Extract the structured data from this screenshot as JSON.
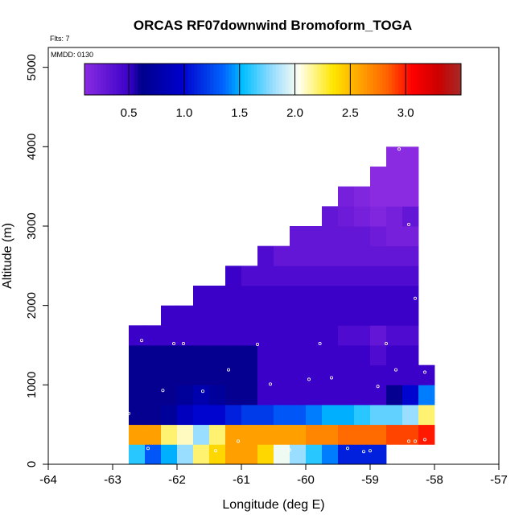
{
  "chart_data": {
    "type": "heatmap",
    "title": "ORCAS RF07downwind Bromoform_TOGA",
    "annotations": [
      "Flts: 7",
      "MMDD: 0130"
    ],
    "xlabel": "Longitude (deg E)",
    "ylabel": "Altitude (m)",
    "xlim": [
      -64,
      -57
    ],
    "ylim": [
      0,
      5250
    ],
    "x_ticks": [
      -64,
      -63,
      -62,
      -61,
      -60,
      -59,
      -58,
      -57
    ],
    "y_ticks": [
      0,
      1000,
      2000,
      3000,
      4000,
      5000
    ],
    "grid": false,
    "colorbar": {
      "min": 0.1,
      "max": 3.5,
      "tick_values": [
        0.5,
        1.0,
        1.5,
        2.0,
        2.5,
        3.0
      ],
      "tick_labels": [
        "0.5",
        "1.0",
        "1.5",
        "2.0",
        "2.5",
        "3.0"
      ],
      "colormap_stops": [
        [
          0.0,
          "#8a2be2"
        ],
        [
          0.12,
          "#3a00c8"
        ],
        [
          0.15,
          "#00008b"
        ],
        [
          0.26,
          "#0000cd"
        ],
        [
          0.37,
          "#0066ff"
        ],
        [
          0.42,
          "#00bfff"
        ],
        [
          0.5,
          "#99ddff"
        ],
        [
          0.57,
          "#fffff0"
        ],
        [
          0.66,
          "#ffe600"
        ],
        [
          0.73,
          "#ffa500"
        ],
        [
          0.8,
          "#ff6600"
        ],
        [
          0.87,
          "#ff0000"
        ],
        [
          0.94,
          "#cc0000"
        ],
        [
          1.0,
          "#a52a2a"
        ]
      ]
    },
    "lon_edges": [
      -62.75,
      -62.5,
      -62.25,
      -62.0,
      -61.75,
      -61.5,
      -61.25,
      -61.0,
      -60.75,
      -60.5,
      -60.25,
      -60.0,
      -59.75,
      -59.5,
      -59.25,
      -59.0,
      -58.75,
      -58.5,
      -58.25,
      -58.0
    ],
    "alt_bin_height": 250,
    "rows": [
      {
        "alt": 0,
        "start": 0,
        "values": [
          1.6,
          1.3,
          1.5,
          1.8,
          2.2,
          2.4,
          2.6,
          2.6,
          2.4,
          2.0,
          1.8,
          1.6,
          1.4,
          1.1,
          1.1,
          1.1
        ]
      },
      {
        "alt": 250,
        "start": 0,
        "values": [
          2.6,
          2.6,
          2.2,
          2.1,
          1.8,
          2.2,
          2.6,
          2.6,
          2.6,
          2.6,
          2.6,
          2.7,
          2.7,
          2.8,
          2.8,
          2.8,
          2.9,
          2.9,
          3.0
        ]
      },
      {
        "alt": 500,
        "start": 0,
        "values": [
          0.6,
          0.6,
          0.7,
          0.9,
          1.0,
          1.0,
          1.1,
          1.2,
          1.2,
          1.3,
          1.3,
          1.4,
          1.5,
          1.5,
          1.6,
          1.7,
          1.7,
          1.8,
          2.2
        ]
      },
      {
        "alt": 750,
        "start": 0,
        "values": [
          0.6,
          0.6,
          0.6,
          0.7,
          0.8,
          0.7,
          0.6,
          0.6,
          0.5,
          0.5,
          0.5,
          0.5,
          0.5,
          0.5,
          0.5,
          0.5,
          0.6,
          1.0,
          1.4
        ]
      },
      {
        "alt": 1000,
        "start": 0,
        "values": [
          0.6,
          0.6,
          0.6,
          0.6,
          0.6,
          0.6,
          0.6,
          0.6,
          0.5,
          0.5,
          0.5,
          0.5,
          0.5,
          0.5,
          0.5,
          0.5,
          0.5,
          0.5,
          0.5
        ]
      },
      {
        "alt": 1250,
        "start": 0,
        "values": [
          0.6,
          0.6,
          0.6,
          0.6,
          0.6,
          0.6,
          0.6,
          0.6,
          0.5,
          0.5,
          0.5,
          0.5,
          0.5,
          0.5,
          0.5,
          0.4,
          0.5,
          0.5
        ]
      },
      {
        "alt": 1500,
        "start": 0,
        "values": [
          0.5,
          0.5,
          0.5,
          0.5,
          0.5,
          0.5,
          0.5,
          0.5,
          0.5,
          0.5,
          0.5,
          0.5,
          0.5,
          0.4,
          0.4,
          0.3,
          0.4,
          0.4
        ]
      },
      {
        "alt": 1750,
        "start": 2,
        "values": [
          0.5,
          0.5,
          0.5,
          0.5,
          0.5,
          0.5,
          0.5,
          0.5,
          0.5,
          0.5,
          0.5,
          0.5,
          0.5,
          0.5,
          0.5,
          0.5
        ]
      },
      {
        "alt": 2000,
        "start": 4,
        "values": [
          0.5,
          0.5,
          0.5,
          0.5,
          0.5,
          0.5,
          0.5,
          0.5,
          0.5,
          0.5,
          0.5,
          0.5,
          0.5,
          0.5
        ]
      },
      {
        "alt": 2250,
        "start": 6,
        "values": [
          0.5,
          0.4,
          0.4,
          0.4,
          0.4,
          0.4,
          0.4,
          0.4,
          0.4,
          0.4,
          0.4,
          0.4
        ]
      },
      {
        "alt": 2500,
        "start": 8,
        "values": [
          0.4,
          0.3,
          0.3,
          0.3,
          0.3,
          0.3,
          0.3,
          0.3,
          0.3,
          0.3
        ]
      },
      {
        "alt": 2750,
        "start": 10,
        "values": [
          0.3,
          0.3,
          0.3,
          0.3,
          0.3,
          0.25,
          0.2,
          0.2
        ]
      },
      {
        "alt": 3000,
        "start": 12,
        "values": [
          0.3,
          0.25,
          0.2,
          0.15,
          0.2,
          0.3
        ]
      },
      {
        "alt": 3250,
        "start": 13,
        "values": [
          0.2,
          0.15,
          0.1,
          0.1,
          0.1
        ]
      },
      {
        "alt": 3500,
        "start": 15,
        "values": [
          0.1,
          0.05,
          0.05
        ]
      },
      {
        "alt": 3750,
        "start": 16,
        "values": [
          0.05,
          0.05
        ]
      }
    ],
    "observations": [
      {
        "lon": -62.75,
        "alt": 640
      },
      {
        "lon": -62.55,
        "alt": 1560
      },
      {
        "lon": -62.45,
        "alt": 200
      },
      {
        "lon": -62.22,
        "alt": 930
      },
      {
        "lon": -62.05,
        "alt": 1520
      },
      {
        "lon": -61.9,
        "alt": 1520
      },
      {
        "lon": -61.6,
        "alt": 920
      },
      {
        "lon": -61.4,
        "alt": 170
      },
      {
        "lon": -61.2,
        "alt": 1190
      },
      {
        "lon": -61.05,
        "alt": 290
      },
      {
        "lon": -60.75,
        "alt": 1510
      },
      {
        "lon": -60.55,
        "alt": 1010
      },
      {
        "lon": -60.25,
        "alt": 180
      },
      {
        "lon": -59.95,
        "alt": 1070
      },
      {
        "lon": -59.78,
        "alt": 1520
      },
      {
        "lon": -59.6,
        "alt": 1090
      },
      {
        "lon": -59.35,
        "alt": 200
      },
      {
        "lon": -59.1,
        "alt": 160
      },
      {
        "lon": -59.0,
        "alt": 170
      },
      {
        "lon": -58.88,
        "alt": 980
      },
      {
        "lon": -58.75,
        "alt": 1520
      },
      {
        "lon": -58.6,
        "alt": 1190
      },
      {
        "lon": -58.55,
        "alt": 3970
      },
      {
        "lon": -58.4,
        "alt": 3020
      },
      {
        "lon": -58.3,
        "alt": 2090
      },
      {
        "lon": -58.4,
        "alt": 290
      },
      {
        "lon": -58.3,
        "alt": 290
      },
      {
        "lon": -58.15,
        "alt": 1160
      },
      {
        "lon": -58.15,
        "alt": 310
      }
    ]
  }
}
